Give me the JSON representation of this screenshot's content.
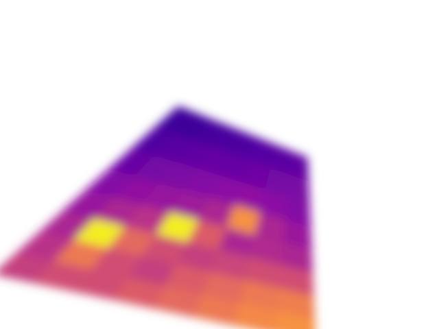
{
  "colormap": "plasma",
  "colors": {
    "background": "#ffffff",
    "low": "#6a00a8",
    "mid": "#cc4778",
    "high": "#fdca26"
  },
  "grid": {
    "rows": 8,
    "cols": 8,
    "values": [
      [
        0.1,
        0.1,
        0.12,
        0.13,
        0.14,
        0.15,
        0.16,
        0.18
      ],
      [
        0.14,
        0.16,
        0.18,
        0.2,
        0.2,
        0.22,
        0.24,
        0.25
      ],
      [
        0.2,
        0.24,
        0.26,
        0.28,
        0.3,
        0.32,
        0.3,
        0.28
      ],
      [
        0.28,
        0.32,
        0.34,
        0.36,
        0.4,
        0.78,
        0.4,
        0.35
      ],
      [
        0.34,
        0.4,
        0.45,
        0.98,
        0.6,
        0.4,
        0.42,
        0.4
      ],
      [
        0.4,
        0.98,
        0.65,
        0.55,
        0.5,
        0.52,
        0.55,
        0.55
      ],
      [
        0.45,
        0.7,
        0.55,
        0.5,
        0.6,
        0.65,
        0.7,
        0.72
      ],
      [
        0.5,
        0.55,
        0.55,
        0.6,
        0.65,
        0.7,
        0.75,
        0.78
      ]
    ]
  }
}
